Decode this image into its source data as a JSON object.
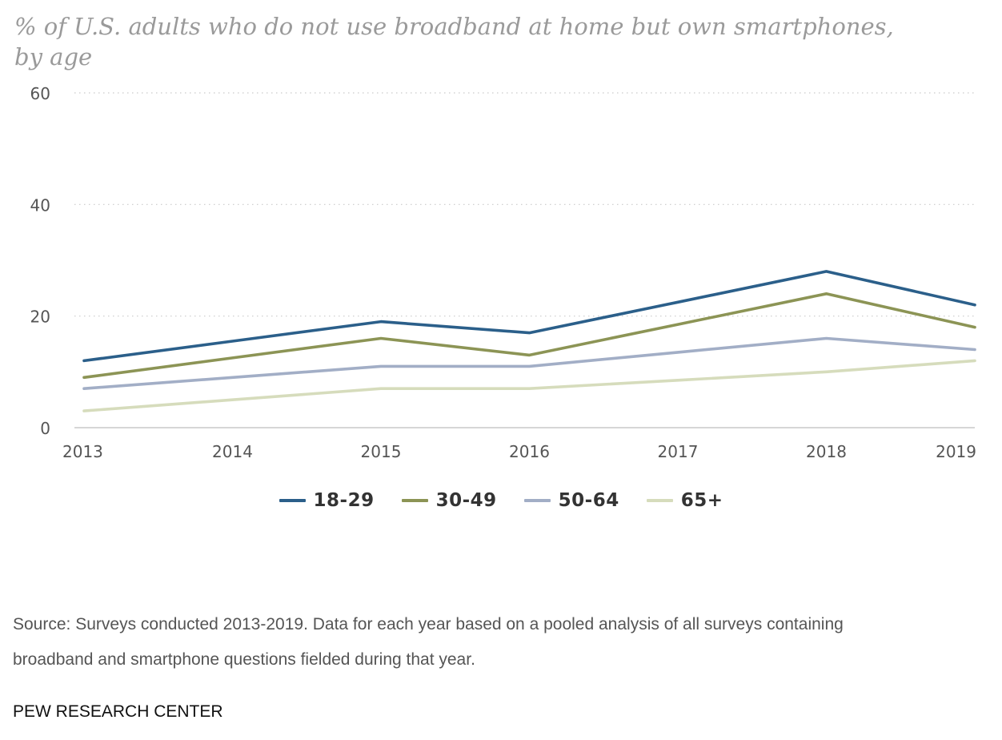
{
  "title": {
    "line1": "% of U.S. adults who do not use broadband at home but own smartphones,",
    "line2": "by age"
  },
  "chart_data": {
    "type": "line",
    "x": [
      "2013",
      "2014",
      "2015",
      "2016",
      "2017",
      "2018",
      "2019"
    ],
    "ylim": [
      0,
      60
    ],
    "yticks": [
      "0",
      "20",
      "40",
      "60"
    ],
    "grid": true,
    "legend_position": "bottom-center",
    "series": [
      {
        "name": "18-29",
        "color": "#2b5f8a",
        "values": [
          12,
          15.5,
          19,
          17,
          22.5,
          28,
          22
        ]
      },
      {
        "name": "30-49",
        "color": "#8c9455",
        "values": [
          9,
          12.5,
          16,
          13,
          18.5,
          24,
          18
        ]
      },
      {
        "name": "50-64",
        "color": "#a2aec6",
        "values": [
          7,
          9,
          11,
          11,
          13.5,
          16,
          14
        ]
      },
      {
        "name": "65+",
        "color": "#d6dcbc",
        "values": [
          3,
          5,
          7,
          7,
          8.5,
          10,
          12
        ]
      }
    ]
  },
  "source": {
    "line1": "Source: Surveys conducted 2013-2019. Data for each year based on a pooled analysis of all surveys containing",
    "line2": "broadband and smartphone questions fielded during that year."
  },
  "brand": "PEW RESEARCH CENTER"
}
